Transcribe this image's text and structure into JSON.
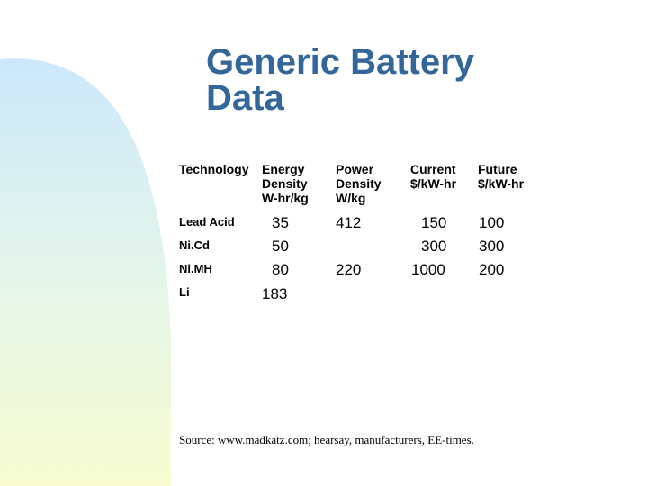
{
  "slide": {
    "title": "Generic Battery\nData",
    "colors": {
      "title": "#336699",
      "gradient_top": "#cce8fb",
      "gradient_bottom": "#f8fcd0"
    }
  },
  "table": {
    "headers": [
      {
        "line1": "Technology",
        "line2": "",
        "line3": ""
      },
      {
        "line1": "Energy",
        "line2": "Density",
        "line3": "W-hr/kg"
      },
      {
        "line1": "Power",
        "line2": "Density",
        "line3": "W/kg"
      },
      {
        "line1": "Current",
        "line2": "$/kW-hr",
        "line3": ""
      },
      {
        "line1": "Future",
        "line2": "$/kW-hr",
        "line3": ""
      }
    ],
    "rows": [
      {
        "technology": "Lead Acid",
        "energy_density": "35",
        "power_density": "412",
        "current_cost": "150",
        "future_cost": "100"
      },
      {
        "technology": "Ni.Cd",
        "energy_density": "50",
        "power_density": "",
        "current_cost": "300",
        "future_cost": "300"
      },
      {
        "technology": "Ni.MH",
        "energy_density": "80",
        "power_density": "220",
        "current_cost": "1000",
        "future_cost": "200"
      },
      {
        "technology": "Li",
        "energy_density": "183",
        "power_density": "",
        "current_cost": "",
        "future_cost": ""
      }
    ]
  },
  "source": "Source: www.madkatz.com; hearsay, manufacturers, EE-times."
}
